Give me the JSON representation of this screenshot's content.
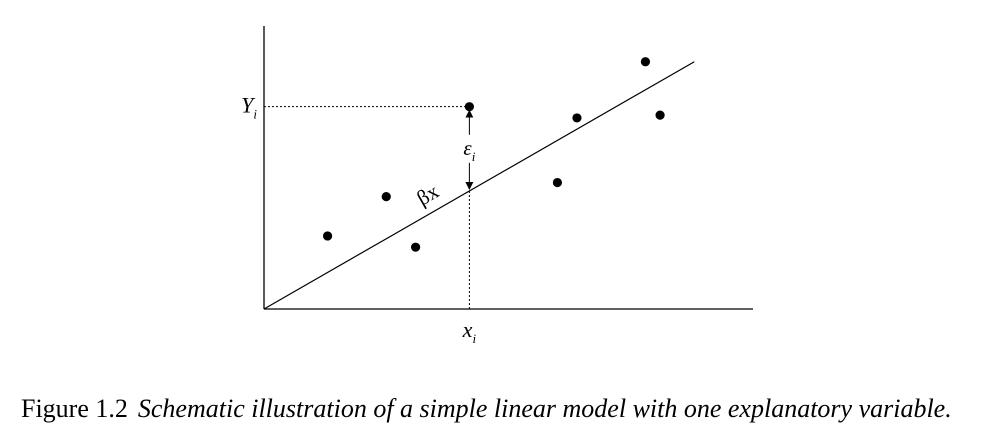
{
  "chart_data": {
    "type": "scatter",
    "x": [
      0.13,
      0.25,
      0.31,
      0.42,
      0.6,
      0.64,
      0.78,
      0.81
    ],
    "y": [
      0.26,
      0.4,
      0.22,
      0.72,
      0.45,
      0.68,
      0.88,
      0.69
    ],
    "fit_line": {
      "x": [
        0,
        0.88
      ],
      "y": [
        0,
        0.88
      ]
    },
    "highlight": {
      "x": 0.42,
      "y": 0.72,
      "fitted_y": 0.42
    },
    "xlim": [
      0,
      1
    ],
    "ylim": [
      0,
      1
    ],
    "x_tick_label": {
      "base": "x",
      "sub": "i"
    },
    "y_tick_label": {
      "base": "Y",
      "sub": "i"
    },
    "error_label": {
      "base": "ε",
      "sub": "i"
    },
    "line_label": "βx",
    "grid": false
  },
  "caption": {
    "number": "Figure 1.2",
    "text": "Schematic illustration of a simple linear model with one explanatory variable."
  }
}
